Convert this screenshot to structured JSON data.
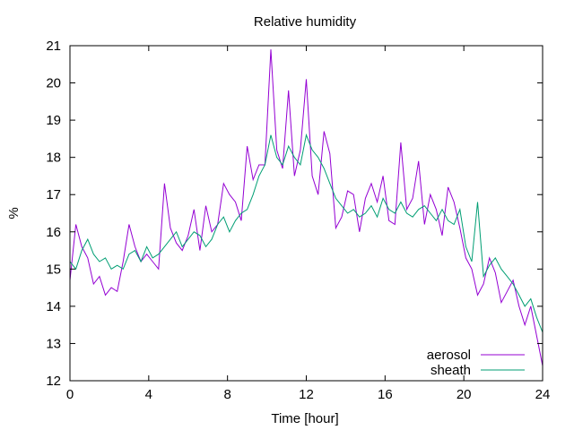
{
  "chart_data": {
    "type": "line",
    "title": "Relative humidity",
    "xlabel": "Time [hour]",
    "ylabel": "%",
    "xlim": [
      0,
      24
    ],
    "ylim": [
      12,
      21
    ],
    "xticks": [
      0,
      4,
      8,
      12,
      16,
      20,
      24
    ],
    "yticks": [
      12,
      13,
      14,
      15,
      16,
      17,
      18,
      19,
      20,
      21
    ],
    "grid": false,
    "legend_position": "bottom-right",
    "series": [
      {
        "name": "aerosol",
        "color": "#9400d3",
        "x": [
          0,
          0.3,
          0.6,
          0.9,
          1.2,
          1.5,
          1.8,
          2.1,
          2.4,
          2.7,
          3.0,
          3.3,
          3.6,
          3.9,
          4.2,
          4.5,
          4.8,
          5.1,
          5.4,
          5.7,
          6.0,
          6.3,
          6.6,
          6.9,
          7.2,
          7.5,
          7.8,
          8.1,
          8.4,
          8.7,
          9.0,
          9.3,
          9.6,
          9.9,
          10.2,
          10.5,
          10.8,
          11.1,
          11.4,
          11.7,
          12.0,
          12.3,
          12.6,
          12.9,
          13.2,
          13.5,
          13.8,
          14.1,
          14.4,
          14.7,
          15.0,
          15.3,
          15.6,
          15.9,
          16.2,
          16.5,
          16.8,
          17.1,
          17.4,
          17.7,
          18.0,
          18.3,
          18.6,
          18.9,
          19.2,
          19.5,
          19.8,
          20.1,
          20.4,
          20.7,
          21.0,
          21.3,
          21.6,
          21.9,
          22.2,
          22.5,
          22.8,
          23.1,
          23.4,
          23.7,
          24.0
        ],
        "y": [
          14.7,
          16.2,
          15.6,
          15.3,
          14.6,
          14.8,
          14.3,
          14.5,
          14.4,
          15.2,
          16.2,
          15.6,
          15.2,
          15.4,
          15.2,
          15.0,
          17.3,
          16.1,
          15.7,
          15.5,
          15.9,
          16.6,
          15.5,
          16.7,
          16.0,
          16.2,
          17.3,
          17.0,
          16.8,
          16.3,
          18.3,
          17.4,
          17.8,
          17.8,
          20.9,
          18.2,
          17.7,
          19.8,
          17.5,
          18.2,
          20.1,
          17.5,
          17.0,
          18.7,
          18.1,
          16.1,
          16.4,
          17.1,
          17.0,
          16.0,
          16.9,
          17.3,
          16.8,
          17.5,
          16.3,
          16.2,
          18.4,
          16.6,
          16.9,
          17.9,
          16.2,
          17.0,
          16.6,
          15.9,
          17.2,
          16.8,
          16.1,
          15.3,
          15.0,
          14.3,
          14.6,
          15.3,
          14.9,
          14.1,
          14.4,
          14.7,
          14.0,
          13.5,
          14.0,
          13.2,
          12.4
        ]
      },
      {
        "name": "sheath",
        "color": "#009e73",
        "x": [
          0,
          0.3,
          0.6,
          0.9,
          1.2,
          1.5,
          1.8,
          2.1,
          2.4,
          2.7,
          3.0,
          3.3,
          3.6,
          3.9,
          4.2,
          4.5,
          4.8,
          5.1,
          5.4,
          5.7,
          6.0,
          6.3,
          6.6,
          6.9,
          7.2,
          7.5,
          7.8,
          8.1,
          8.4,
          8.7,
          9.0,
          9.3,
          9.6,
          9.9,
          10.2,
          10.5,
          10.8,
          11.1,
          11.4,
          11.7,
          12.0,
          12.3,
          12.6,
          12.9,
          13.2,
          13.5,
          13.8,
          14.1,
          14.4,
          14.7,
          15.0,
          15.3,
          15.6,
          15.9,
          16.2,
          16.5,
          16.8,
          17.1,
          17.4,
          17.7,
          18.0,
          18.3,
          18.6,
          18.9,
          19.2,
          19.5,
          19.8,
          20.1,
          20.4,
          20.7,
          21.0,
          21.3,
          21.6,
          21.9,
          22.2,
          22.5,
          22.8,
          23.1,
          23.4,
          23.7,
          24.0
        ],
        "y": [
          15.2,
          15.0,
          15.5,
          15.8,
          15.4,
          15.2,
          15.3,
          15.0,
          15.1,
          15.0,
          15.4,
          15.5,
          15.2,
          15.6,
          15.3,
          15.4,
          15.6,
          15.8,
          16.0,
          15.6,
          15.8,
          16.0,
          15.9,
          15.6,
          15.8,
          16.2,
          16.4,
          16.0,
          16.3,
          16.5,
          16.6,
          17.0,
          17.5,
          17.8,
          18.6,
          18.0,
          17.8,
          18.3,
          18.0,
          17.8,
          18.6,
          18.2,
          18.0,
          17.7,
          17.3,
          16.9,
          16.7,
          16.5,
          16.6,
          16.4,
          16.5,
          16.7,
          16.4,
          16.9,
          16.6,
          16.5,
          16.8,
          16.5,
          16.4,
          16.6,
          16.7,
          16.5,
          16.3,
          16.6,
          16.3,
          16.2,
          16.6,
          15.6,
          15.2,
          16.8,
          14.8,
          15.1,
          15.3,
          15.0,
          14.8,
          14.6,
          14.3,
          14.0,
          14.2,
          13.7,
          13.3
        ]
      }
    ]
  }
}
